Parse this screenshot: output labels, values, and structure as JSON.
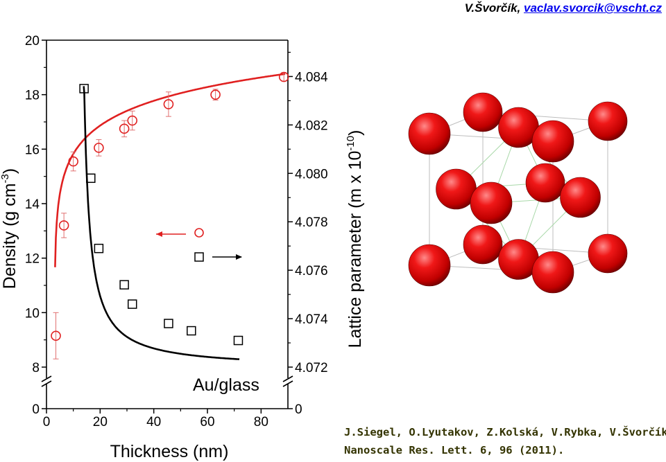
{
  "header": {
    "author_name": "V.Švorčík,",
    "author_email": "vaclav.svorcik@vscht.cz"
  },
  "citation": {
    "line1": "J.Siegel, O.Lyutakov, Z.Kolská, V.Rybka, V.Švorčík,",
    "line2": "Nanoscale Res. Lett. 6, 96 (2011)."
  },
  "chart_data": {
    "type": "scatter",
    "annotation": "Au/glass",
    "xlabel": "Thickness (nm)",
    "ylabel_left": "Density (g cm-3)",
    "ylabel_right": "Lattice parameter (m x 10-10)",
    "xlim": [
      0,
      90
    ],
    "x_ticks": [
      "0",
      "20",
      "40",
      "60",
      "80"
    ],
    "y_left_ticks": [
      "8",
      "10",
      "12",
      "14",
      "16",
      "18",
      "20"
    ],
    "y_left_zero": "0",
    "ylim_left": [
      8,
      20
    ],
    "y_right_ticks": [
      "4.072",
      "4.074",
      "4.076",
      "4.078",
      "4.080",
      "4.082",
      "4.084"
    ],
    "y_right_zero": "0",
    "ylim_right": [
      4.072,
      4.0855
    ],
    "series": [
      {
        "axis": "left",
        "marker": "circle",
        "color": "#e02020",
        "legend_arrow": "left",
        "x": [
          3.5,
          6.5,
          10,
          19.5,
          29,
          32,
          45.5,
          63,
          88.5
        ],
        "y": [
          9.15,
          13.2,
          15.55,
          16.05,
          16.75,
          17.05,
          17.65,
          18.0,
          18.65
        ],
        "err": [
          0.85,
          0.45,
          0.35,
          0.3,
          0.3,
          0.35,
          0.45,
          0.2,
          0.15
        ]
      },
      {
        "axis": "right",
        "marker": "square",
        "color": "#000000",
        "legend_arrow": "right",
        "x": [
          14,
          16.5,
          19.5,
          29,
          32,
          45.5,
          54,
          71.5
        ],
        "y": [
          4.0835,
          4.0798,
          4.0769,
          4.0754,
          4.0746,
          4.0738,
          4.0735,
          4.0731
        ]
      }
    ]
  },
  "crystal": {
    "atom_color": "#e00000",
    "edge_color": "#bdbdbd",
    "inner_color": "#a8d8a8"
  }
}
